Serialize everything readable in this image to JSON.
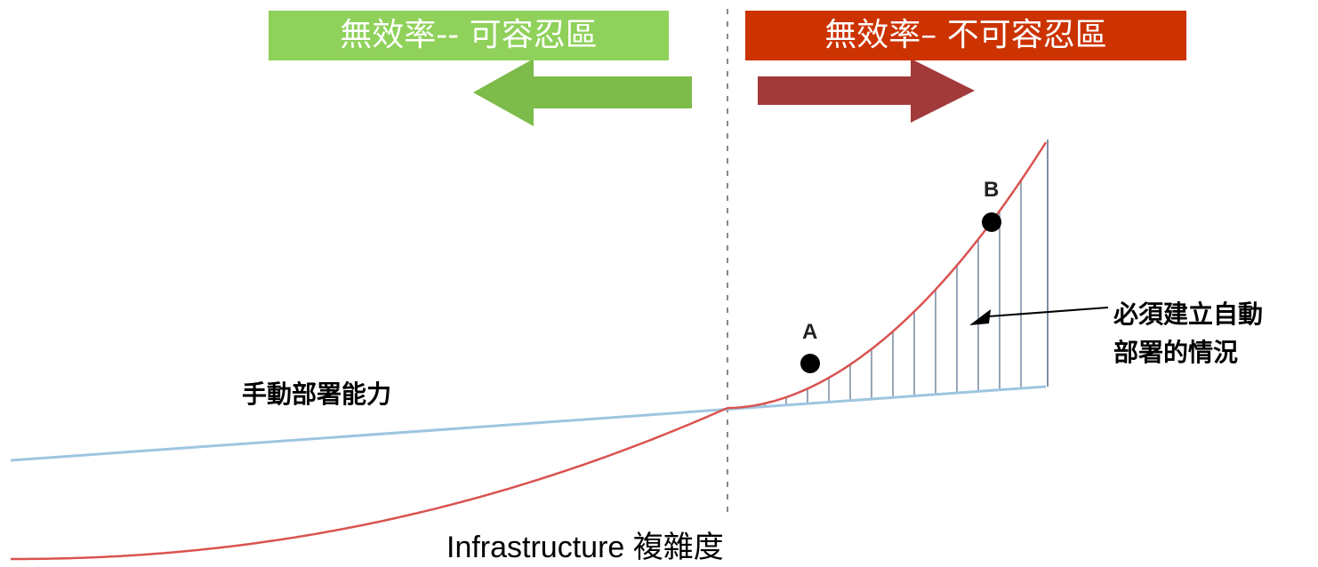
{
  "zones": {
    "tolerable": {
      "label": "無效率-- 可容忍區",
      "color": "#8fd15a",
      "arrow_color": "#7dbb4a"
    },
    "intolerable": {
      "label": "無效率– 不可容忍區",
      "color": "#cc3300",
      "arrow_color": "#a33a3a"
    }
  },
  "labels": {
    "manual_capacity": "手動部署能力",
    "automation_needed_line1": "必須建立自動",
    "automation_needed_line2": "部署的情況",
    "x_axis": "Infrastructure 複雜度"
  },
  "points": [
    {
      "letter": "A"
    },
    {
      "letter": "B"
    }
  ],
  "colors": {
    "complexity_curve": "#d9534f",
    "capacity_line": "#9ec5e0",
    "threshold_line": "#888888",
    "hatch": "#7f8fa6"
  }
}
